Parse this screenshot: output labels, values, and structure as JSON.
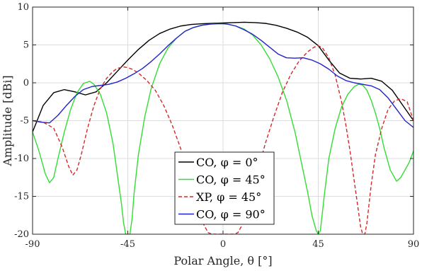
{
  "chart_data": {
    "type": "line",
    "xlabel": "Polar Angle, θ [°]",
    "ylabel": "Amplitude [dBi]",
    "xlim": [
      -90,
      90
    ],
    "ylim": [
      -20,
      10
    ],
    "xticks": [
      -90,
      -45,
      0,
      45,
      90
    ],
    "yticks": [
      -20,
      -15,
      -10,
      -5,
      0,
      5,
      10
    ],
    "xtick_labels": [
      "-90",
      "-45",
      "0",
      "45",
      "90"
    ],
    "ytick_labels": [
      "-20",
      "-15",
      "-10",
      "-5",
      "0",
      "5",
      "10"
    ],
    "grid": true,
    "legend_position": "bottom-center",
    "series": [
      {
        "name": "CO, φ = 0°",
        "color": "#000000",
        "dash": "solid",
        "x": [
          -90,
          -85,
          -80,
          -75,
          -70,
          -65,
          -60,
          -55,
          -50,
          -45,
          -40,
          -35,
          -30,
          -25,
          -20,
          -15,
          -10,
          -5,
          0,
          5,
          10,
          15,
          20,
          25,
          30,
          35,
          40,
          45,
          50,
          55,
          60,
          65,
          70,
          75,
          80,
          85,
          90
        ],
        "y": [
          -6.5,
          -3.0,
          -1.3,
          -0.9,
          -1.2,
          -1.6,
          -1.2,
          0.0,
          1.5,
          3.0,
          4.4,
          5.6,
          6.5,
          7.1,
          7.5,
          7.7,
          7.8,
          7.85,
          7.9,
          7.95,
          8.0,
          7.95,
          7.85,
          7.6,
          7.2,
          6.7,
          6.0,
          4.9,
          3.0,
          1.3,
          0.6,
          0.5,
          0.6,
          0.2,
          -1.0,
          -3.0,
          -5.0
        ]
      },
      {
        "name": "CO, φ = 45°",
        "color": "#33dd33",
        "dash": "solid",
        "x": [
          -90,
          -87,
          -84,
          -82,
          -80,
          -78,
          -75,
          -72,
          -69,
          -66,
          -63,
          -61,
          -58,
          -55,
          -52,
          -50,
          -48,
          -47,
          -46,
          -45,
          -44,
          -43,
          -42,
          -40,
          -37,
          -34,
          -30,
          -26,
          -22,
          -18,
          -14,
          -10,
          -6,
          -3,
          0,
          3,
          6,
          10,
          14,
          18,
          22,
          26,
          30,
          34,
          37,
          40,
          42,
          44,
          45,
          46,
          47,
          48,
          50,
          53,
          56,
          59,
          62,
          64,
          66,
          68,
          70,
          72,
          74,
          76,
          79,
          82,
          84,
          86,
          88,
          90
        ],
        "y": [
          -6.5,
          -9.0,
          -12.0,
          -13.2,
          -12.5,
          -10.0,
          -6.5,
          -3.5,
          -1.3,
          -0.1,
          0.2,
          -0.2,
          -1.5,
          -4.0,
          -8.0,
          -12.0,
          -16.0,
          -18.5,
          -20.0,
          -20.0,
          -20.0,
          -18.0,
          -14.5,
          -9.5,
          -4.5,
          -0.8,
          2.5,
          4.6,
          5.9,
          6.8,
          7.3,
          7.6,
          7.75,
          7.8,
          7.8,
          7.7,
          7.5,
          7.1,
          6.3,
          5.0,
          3.2,
          0.8,
          -2.3,
          -6.5,
          -10.5,
          -14.5,
          -17.5,
          -19.5,
          -20.0,
          -19.5,
          -17.0,
          -14.5,
          -10.0,
          -6.0,
          -3.2,
          -1.5,
          -0.5,
          -0.2,
          -0.3,
          -1.0,
          -2.3,
          -4.0,
          -6.0,
          -8.5,
          -11.5,
          -13.0,
          -12.5,
          -11.5,
          -10.5,
          -9.0
        ]
      },
      {
        "name": "XP, φ = 45°",
        "color": "#d62728",
        "dash": "dashed",
        "x": [
          -90,
          -85,
          -80,
          -76,
          -73,
          -71,
          -69,
          -67,
          -64,
          -61,
          -58,
          -55,
          -52,
          -50,
          -47,
          -45,
          -43,
          -40,
          -36,
          -32,
          -28,
          -24,
          -20,
          -17,
          -15,
          -13,
          -11,
          -9,
          -7,
          -5,
          -3,
          -2,
          2,
          3,
          5,
          7,
          9,
          11,
          13,
          15,
          17,
          20,
          24,
          28,
          32,
          36,
          40,
          43,
          45,
          47,
          50,
          53,
          56,
          58,
          60,
          62,
          64,
          65,
          66,
          67,
          68,
          70,
          72,
          75,
          78,
          81,
          84,
          87,
          90
        ],
        "y": [
          -5.0,
          -5.2,
          -6.0,
          -8.5,
          -11.0,
          -12.2,
          -11.5,
          -9.5,
          -6.0,
          -3.0,
          -0.8,
          0.6,
          1.5,
          1.9,
          2.1,
          2.0,
          1.8,
          1.3,
          0.3,
          -1.0,
          -3.0,
          -5.6,
          -8.7,
          -11.3,
          -13.2,
          -15.2,
          -17.2,
          -18.8,
          -19.8,
          -20.0,
          -20.0,
          -20.0,
          -20.0,
          -20.0,
          -20.0,
          -19.8,
          -18.8,
          -17.0,
          -15.0,
          -13.0,
          -11.0,
          -8.0,
          -4.5,
          -1.3,
          1.1,
          2.9,
          4.1,
          4.7,
          4.9,
          4.6,
          3.3,
          1.0,
          -2.5,
          -5.5,
          -9.0,
          -13.0,
          -17.0,
          -19.0,
          -20.0,
          -20.0,
          -18.5,
          -13.5,
          -9.5,
          -6.0,
          -3.5,
          -2.4,
          -2.1,
          -2.5,
          -5.0
        ]
      },
      {
        "name": "CO, φ = 90°",
        "color": "#2222cc",
        "dash": "solid",
        "x": [
          -90,
          -86,
          -82,
          -78,
          -74,
          -70,
          -66,
          -62,
          -58,
          -54,
          -50,
          -46,
          -42,
          -38,
          -34,
          -30,
          -26,
          -22,
          -18,
          -14,
          -10,
          -6,
          -2,
          0,
          2,
          6,
          10,
          14,
          18,
          22,
          26,
          30,
          34,
          38,
          42,
          46,
          50,
          54,
          58,
          62,
          66,
          70,
          74,
          78,
          82,
          86,
          90
        ],
        "y": [
          -5.0,
          -5.2,
          -5.3,
          -4.3,
          -3.0,
          -1.8,
          -0.9,
          -0.5,
          -0.35,
          -0.2,
          0.1,
          0.6,
          1.2,
          1.9,
          2.8,
          3.8,
          4.9,
          5.9,
          6.8,
          7.3,
          7.6,
          7.75,
          7.8,
          7.8,
          7.75,
          7.5,
          7.0,
          6.4,
          5.6,
          4.7,
          3.8,
          3.3,
          3.25,
          3.3,
          3.0,
          2.5,
          1.8,
          0.9,
          0.3,
          0.0,
          -0.2,
          -0.4,
          -0.9,
          -2.0,
          -3.5,
          -5.0,
          -5.9
        ]
      }
    ]
  }
}
